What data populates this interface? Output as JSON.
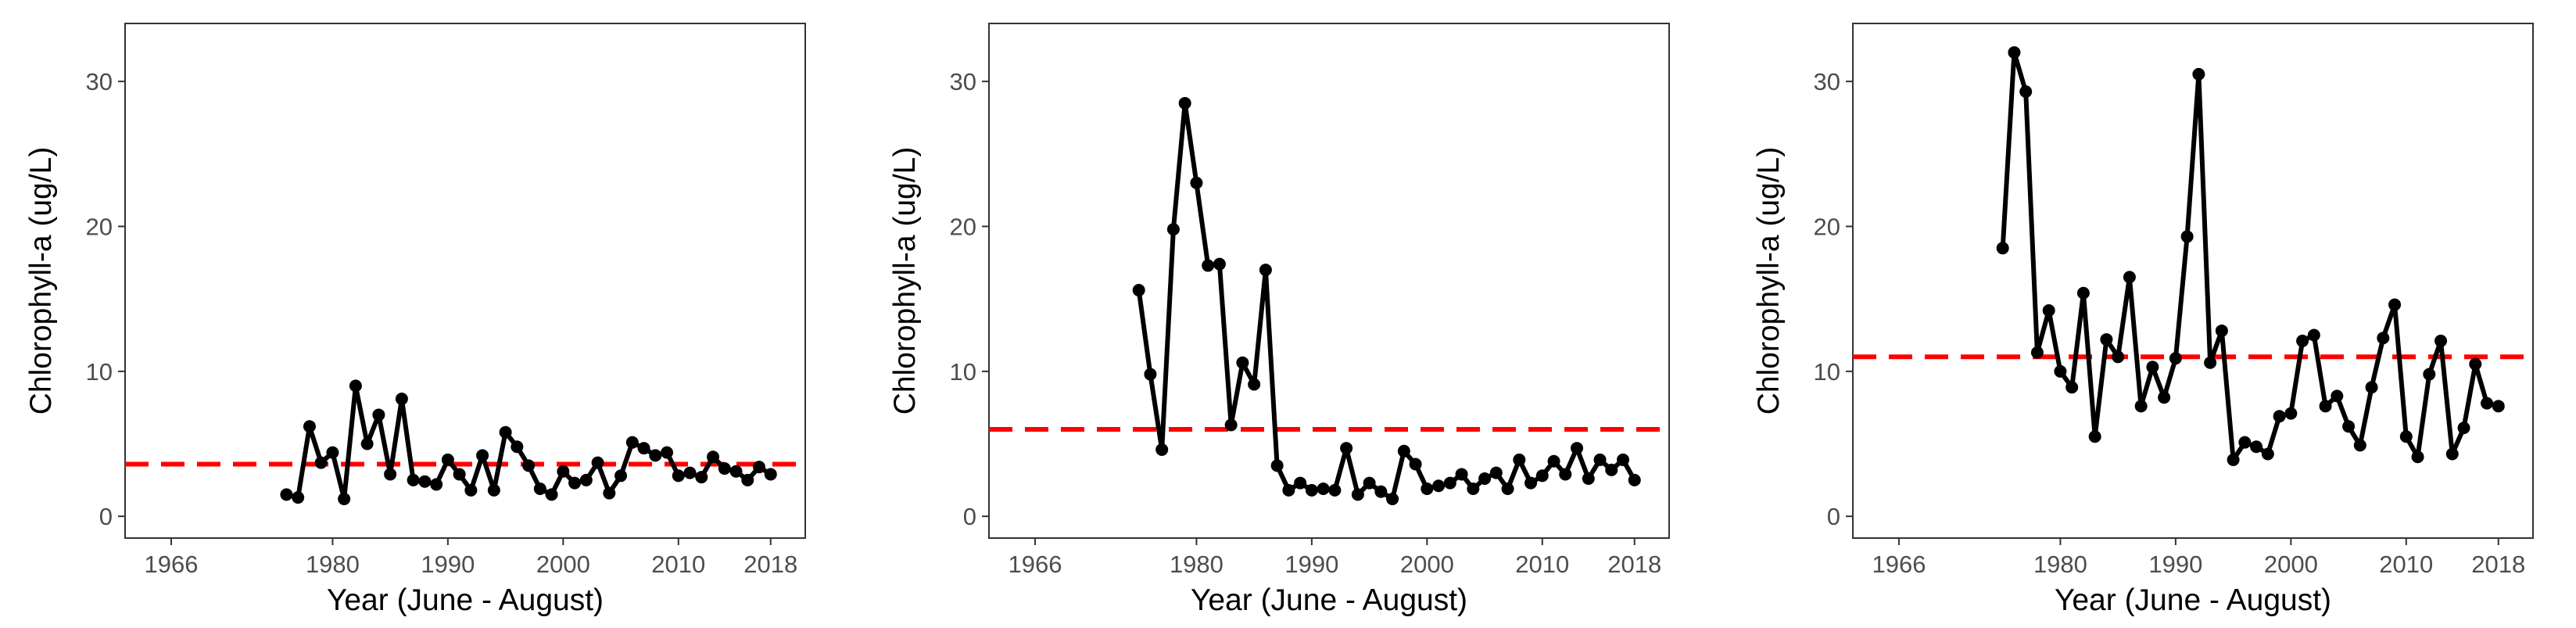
{
  "figure": {
    "x_axis_title": "Year (June - August)",
    "y_axis_title": "Chlorophyll-a (ug/L)"
  },
  "chart_data": [
    {
      "type": "line",
      "xlabel": "Year (June - August)",
      "ylabel": "Chlorophyll-a (ug/L)",
      "xlim": [
        1962,
        2021
      ],
      "ylim": [
        -1.5,
        34
      ],
      "xticks": [
        "1966",
        "1980",
        "1990",
        "2000",
        "2010",
        "2018"
      ],
      "yticks": [
        "0",
        "10",
        "20",
        "30"
      ],
      "grid": false,
      "threshold": {
        "value": 3.6,
        "color": "#ff0000",
        "style": "dashed"
      },
      "line_color": "#000000",
      "x": [
        1976,
        1977,
        1978,
        1979,
        1980,
        1981,
        1982,
        1983,
        1984,
        1985,
        1986,
        1987,
        1988,
        1989,
        1990,
        1991,
        1992,
        1993,
        1994,
        1995,
        1996,
        1997,
        1998,
        1999,
        2000,
        2001,
        2002,
        2003,
        2004,
        2005,
        2006,
        2007,
        2008,
        2009,
        2010,
        2011,
        2012,
        2013,
        2014,
        2015,
        2016,
        2017,
        2018
      ],
      "y": [
        1.5,
        1.3,
        6.2,
        3.7,
        4.4,
        1.2,
        9.0,
        5.0,
        7.0,
        2.9,
        8.1,
        2.5,
        2.4,
        2.2,
        3.9,
        2.9,
        1.8,
        4.2,
        1.8,
        5.8,
        4.8,
        3.5,
        1.9,
        1.5,
        3.1,
        2.3,
        2.5,
        3.7,
        1.6,
        2.8,
        5.1,
        4.7,
        4.2,
        4.4,
        2.8,
        3.0,
        2.7,
        4.1,
        3.3,
        3.1,
        2.5,
        3.4,
        2.9
      ]
    },
    {
      "type": "line",
      "xlabel": "Year (June - August)",
      "ylabel": "Chlorophyll-a (ug/L)",
      "xlim": [
        1962,
        2021
      ],
      "ylim": [
        -1.5,
        34
      ],
      "xticks": [
        "1966",
        "1980",
        "1990",
        "2000",
        "2010",
        "2018"
      ],
      "yticks": [
        "0",
        "10",
        "20",
        "30"
      ],
      "grid": false,
      "threshold": {
        "value": 6.0,
        "color": "#ff0000",
        "style": "dashed"
      },
      "line_color": "#000000",
      "x": [
        1975,
        1976,
        1977,
        1978,
        1979,
        1980,
        1981,
        1982,
        1983,
        1984,
        1985,
        1986,
        1987,
        1988,
        1989,
        1990,
        1991,
        1992,
        1993,
        1994,
        1995,
        1996,
        1997,
        1998,
        1999,
        2000,
        2001,
        2002,
        2003,
        2004,
        2005,
        2006,
        2007,
        2008,
        2009,
        2010,
        2011,
        2012,
        2013,
        2014,
        2015,
        2016,
        2017,
        2018
      ],
      "y": [
        15.6,
        9.8,
        4.6,
        19.8,
        28.5,
        23.0,
        17.3,
        17.4,
        6.3,
        10.6,
        9.1,
        17.0,
        3.5,
        1.8,
        2.3,
        1.8,
        1.9,
        1.8,
        4.7,
        1.5,
        2.3,
        1.7,
        1.2,
        4.5,
        3.6,
        1.9,
        2.1,
        2.3,
        2.9,
        1.9,
        2.6,
        3.0,
        1.9,
        3.9,
        2.3,
        2.8,
        3.8,
        2.9,
        4.7,
        2.6,
        3.9,
        3.2,
        3.9,
        2.5
      ]
    },
    {
      "type": "line",
      "xlabel": "Year (June - August)",
      "ylabel": "Chlorophyll-a (ug/L)",
      "xlim": [
        1962,
        2021
      ],
      "ylim": [
        -1.5,
        34
      ],
      "xticks": [
        "1966",
        "1980",
        "1990",
        "2000",
        "2010",
        "2018"
      ],
      "yticks": [
        "0",
        "10",
        "20",
        "30"
      ],
      "grid": false,
      "threshold": {
        "value": 11.0,
        "color": "#ff0000",
        "style": "dashed"
      },
      "line_color": "#000000",
      "x": [
        1975,
        1976,
        1977,
        1978,
        1979,
        1980,
        1981,
        1982,
        1983,
        1984,
        1985,
        1986,
        1987,
        1988,
        1989,
        1990,
        1991,
        1992,
        1993,
        1994,
        1995,
        1996,
        1997,
        1998,
        1999,
        2000,
        2001,
        2002,
        2003,
        2004,
        2005,
        2006,
        2007,
        2008,
        2009,
        2010,
        2011,
        2012,
        2013,
        2014,
        2015,
        2016,
        2017,
        2018
      ],
      "y": [
        18.5,
        32.0,
        29.3,
        11.3,
        14.2,
        10.0,
        8.9,
        15.4,
        5.5,
        12.2,
        11.0,
        16.5,
        7.6,
        10.3,
        8.2,
        10.9,
        19.3,
        30.5,
        10.6,
        12.8,
        3.9,
        5.1,
        4.8,
        4.3,
        6.9,
        7.1,
        12.1,
        12.5,
        7.6,
        8.3,
        6.2,
        4.9,
        8.9,
        12.3,
        14.6,
        5.5,
        4.1,
        9.8,
        12.1,
        4.3,
        6.1,
        10.5,
        7.8,
        7.6
      ]
    }
  ]
}
